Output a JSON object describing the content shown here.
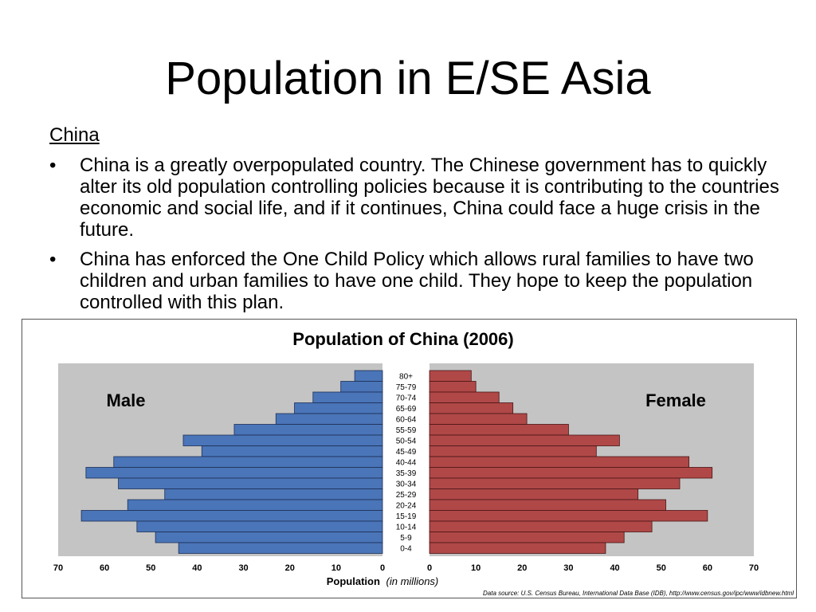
{
  "slide": {
    "title": "Population in E/SE Asia",
    "section_heading": "China",
    "bullets": [
      "China is a greatly overpopulated country. The Chinese government has to quickly alter its old population controlling policies because it is contributing to the countries economic and social life, and if it continues, China could face a huge crisis in the future.",
      "China has enforced the One Child Policy which allows rural families to have two children and urban families to have one child. They hope to keep the population controlled with this plan."
    ],
    "bullet_symbol": "•"
  },
  "chart_data": {
    "type": "bar",
    "subtype": "population-pyramid",
    "title": "Population of China (2006)",
    "categories": [
      "80+",
      "75-79",
      "70-74",
      "65-69",
      "60-64",
      "55-59",
      "50-54",
      "45-49",
      "40-44",
      "35-39",
      "30-34",
      "25-29",
      "20-24",
      "15-19",
      "10-14",
      "5-9",
      "0-4"
    ],
    "series": [
      {
        "name": "Male",
        "color": "#4a75b8",
        "values": [
          6,
          9,
          15,
          19,
          23,
          32,
          43,
          39,
          58,
          64,
          57,
          47,
          55,
          65,
          53,
          49,
          44
        ]
      },
      {
        "name": "Female",
        "color": "#b04848",
        "values": [
          9,
          10,
          15,
          18,
          21,
          30,
          41,
          36,
          56,
          61,
          54,
          45,
          51,
          60,
          48,
          42,
          38
        ]
      }
    ],
    "xlim": [
      0,
      70
    ],
    "ticks": [
      "70",
      "60",
      "50",
      "40",
      "30",
      "20",
      "10",
      "0",
      "0",
      "10",
      "20",
      "30",
      "40",
      "50",
      "60",
      "70"
    ],
    "xlabel": "Population",
    "xlabel_units": "(in millions)",
    "source": "Data source: U.S. Census Bureau, International Data Base (IDB), http://www.census.gov/ipc/www/idbnew.html",
    "plot_background": "#c4c4c4",
    "grid": false
  }
}
